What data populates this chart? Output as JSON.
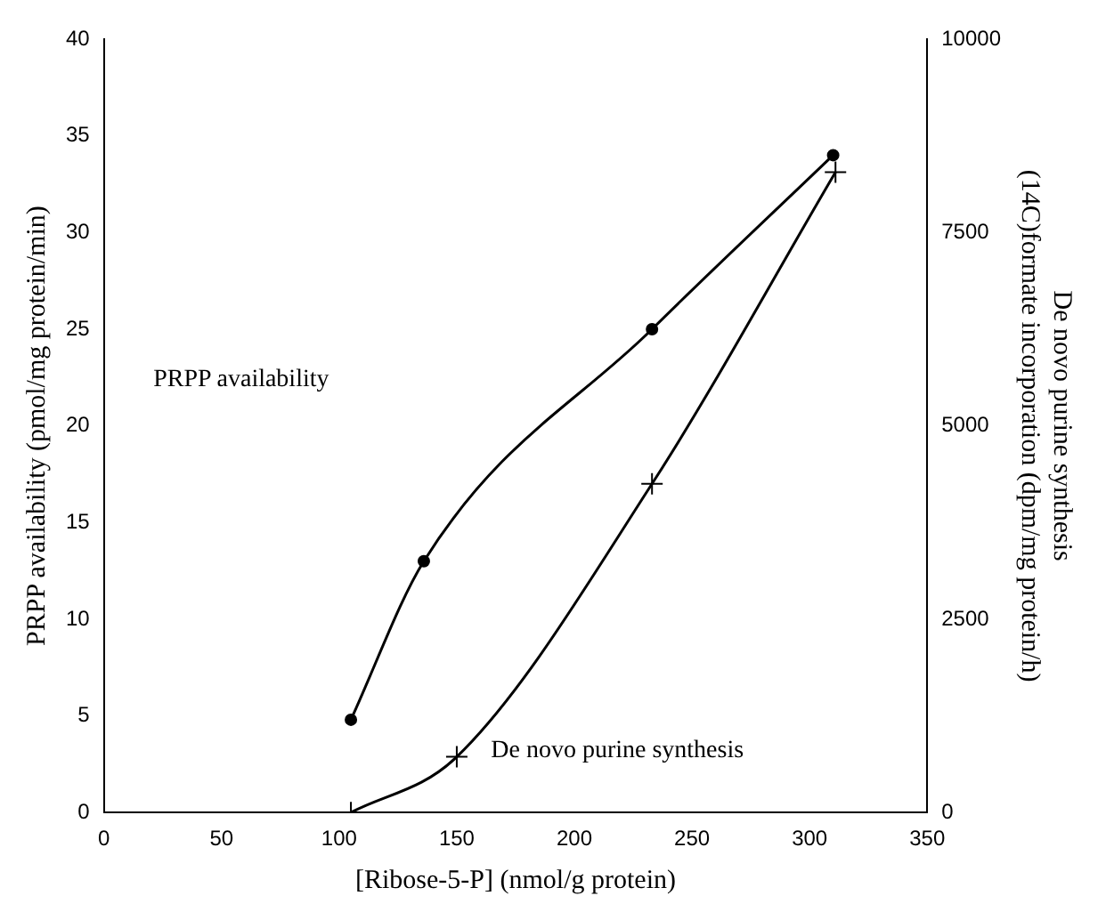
{
  "chart_data": {
    "type": "line",
    "xlabel": "[Ribose-5-P] (nmol/g protein)",
    "ylabel": "PRPP availability (pmol/mg protein/min)",
    "y2label": "De novo purine synthesis\n(14C)formate incorporation (dpm/mg protein/h)",
    "xlim": [
      0,
      350
    ],
    "xticks": [
      0,
      50,
      100,
      150,
      200,
      250,
      300,
      350
    ],
    "ylim": [
      0,
      40
    ],
    "yticks": [
      0,
      5,
      10,
      15,
      20,
      25,
      30,
      35,
      40
    ],
    "y2lim": [
      0,
      10000
    ],
    "y2ticks": [
      0,
      2500,
      5000,
      7500,
      10000
    ],
    "grid": false,
    "legend": false,
    "series": [
      {
        "color": "#000000",
        "marker": "circle",
        "x": [
          105,
          136,
          233,
          310
        ],
        "values": [
          4.8,
          13,
          25,
          34
        ]
      },
      {
        "color": "#000000",
        "marker": "cross",
        "axis": "y2",
        "x": [
          105,
          150,
          233,
          311
        ],
        "values": [
          0,
          720,
          4250,
          8280
        ]
      }
    ],
    "annotations": [
      "PRPP availability",
      "De novo purine synthesis"
    ]
  }
}
